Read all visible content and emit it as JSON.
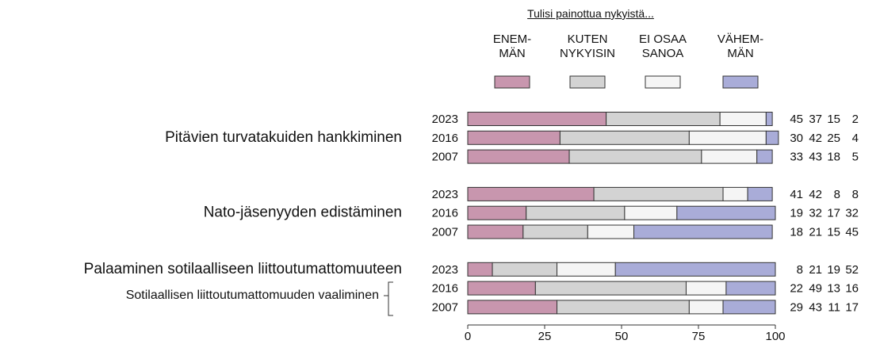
{
  "chart_data": {
    "type": "stacked_bar_horizontal",
    "legend_title": "Tulisi painottua nykyistä...",
    "categories": [
      "2023",
      "2016",
      "2007",
      "2023",
      "2016",
      "2007",
      "2023",
      "2016",
      "2007"
    ],
    "row_labels": [
      null,
      "Pitävien turvatakuiden hankkiminen",
      null,
      null,
      "Nato-jäsenyyden edistäminen",
      null,
      "Palaaminen sotilaalliseen liittoutumattomuuteen",
      "Sotilaallisen liittoutumattomuuden vaaliminen",
      null
    ],
    "series": [
      {
        "name": "ENEM-\nMÄN",
        "color": "#c896ae",
        "values": [
          45,
          30,
          33,
          41,
          19,
          18,
          8,
          22,
          29
        ]
      },
      {
        "name": "KUTEN\nNYKYISIN",
        "color": "#d3d3d3",
        "values": [
          37,
          42,
          43,
          42,
          32,
          21,
          21,
          49,
          43
        ]
      },
      {
        "name": "EI OSAA\nSANOA",
        "color": "#f5f5f5",
        "values": [
          15,
          25,
          18,
          8,
          17,
          15,
          19,
          13,
          11
        ]
      },
      {
        "name": "VÄHEM-\nMÄN",
        "color": "#a9acd8",
        "values": [
          2,
          4,
          5,
          8,
          32,
          45,
          52,
          16,
          17
        ]
      }
    ],
    "xlim": [
      0,
      100
    ],
    "xticks": [
      0,
      25,
      50,
      75,
      100
    ]
  }
}
